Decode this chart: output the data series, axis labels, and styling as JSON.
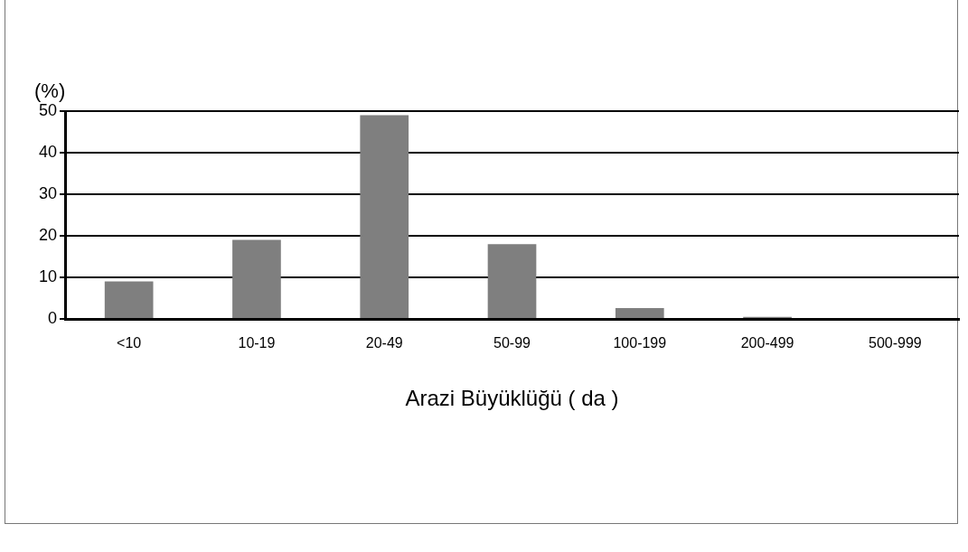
{
  "chart_data": {
    "type": "bar",
    "xlabel": "Arazi Büyüklüğü ( da )",
    "ylabel": "(%)",
    "categories": [
      "<10",
      "10-19",
      "20-49",
      "50-99",
      "100-199",
      "200-499",
      "500-999"
    ],
    "values": [
      9,
      19,
      49,
      18,
      2.6,
      0.5,
      0
    ],
    "color": "#7f7f7f",
    "ylim": [
      0,
      50
    ],
    "yticks": [
      0,
      10,
      20,
      30,
      40,
      50
    ],
    "grid": "y",
    "legend": false
  }
}
